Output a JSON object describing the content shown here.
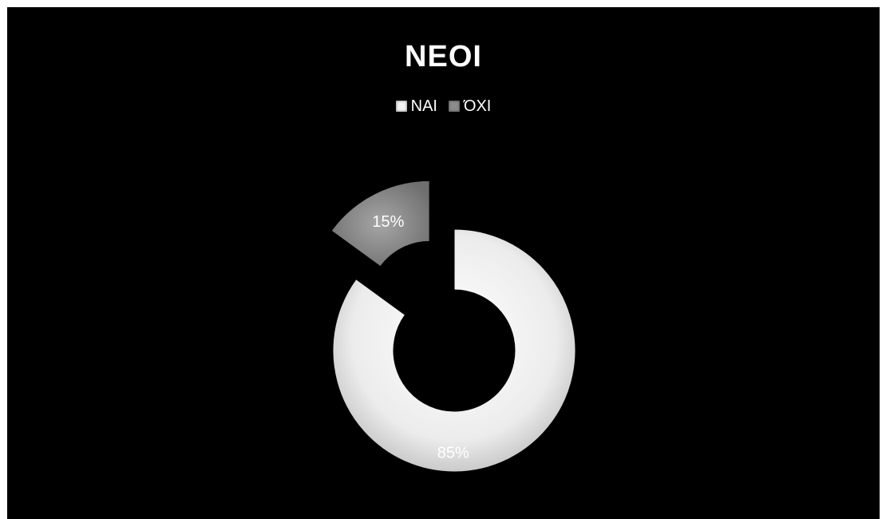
{
  "chart_data": {
    "type": "pie",
    "title": "ΝΕΟΙ",
    "categories": [
      "ΝΑΙ",
      "ΌΧΙ"
    ],
    "values": [
      85,
      15
    ],
    "data_labels": [
      "85%",
      "15%"
    ],
    "colors": [
      "#f2f2f2",
      "#8c8c8c"
    ],
    "background": "#000000",
    "legend_position": "top",
    "style": "exploded doughnut"
  }
}
